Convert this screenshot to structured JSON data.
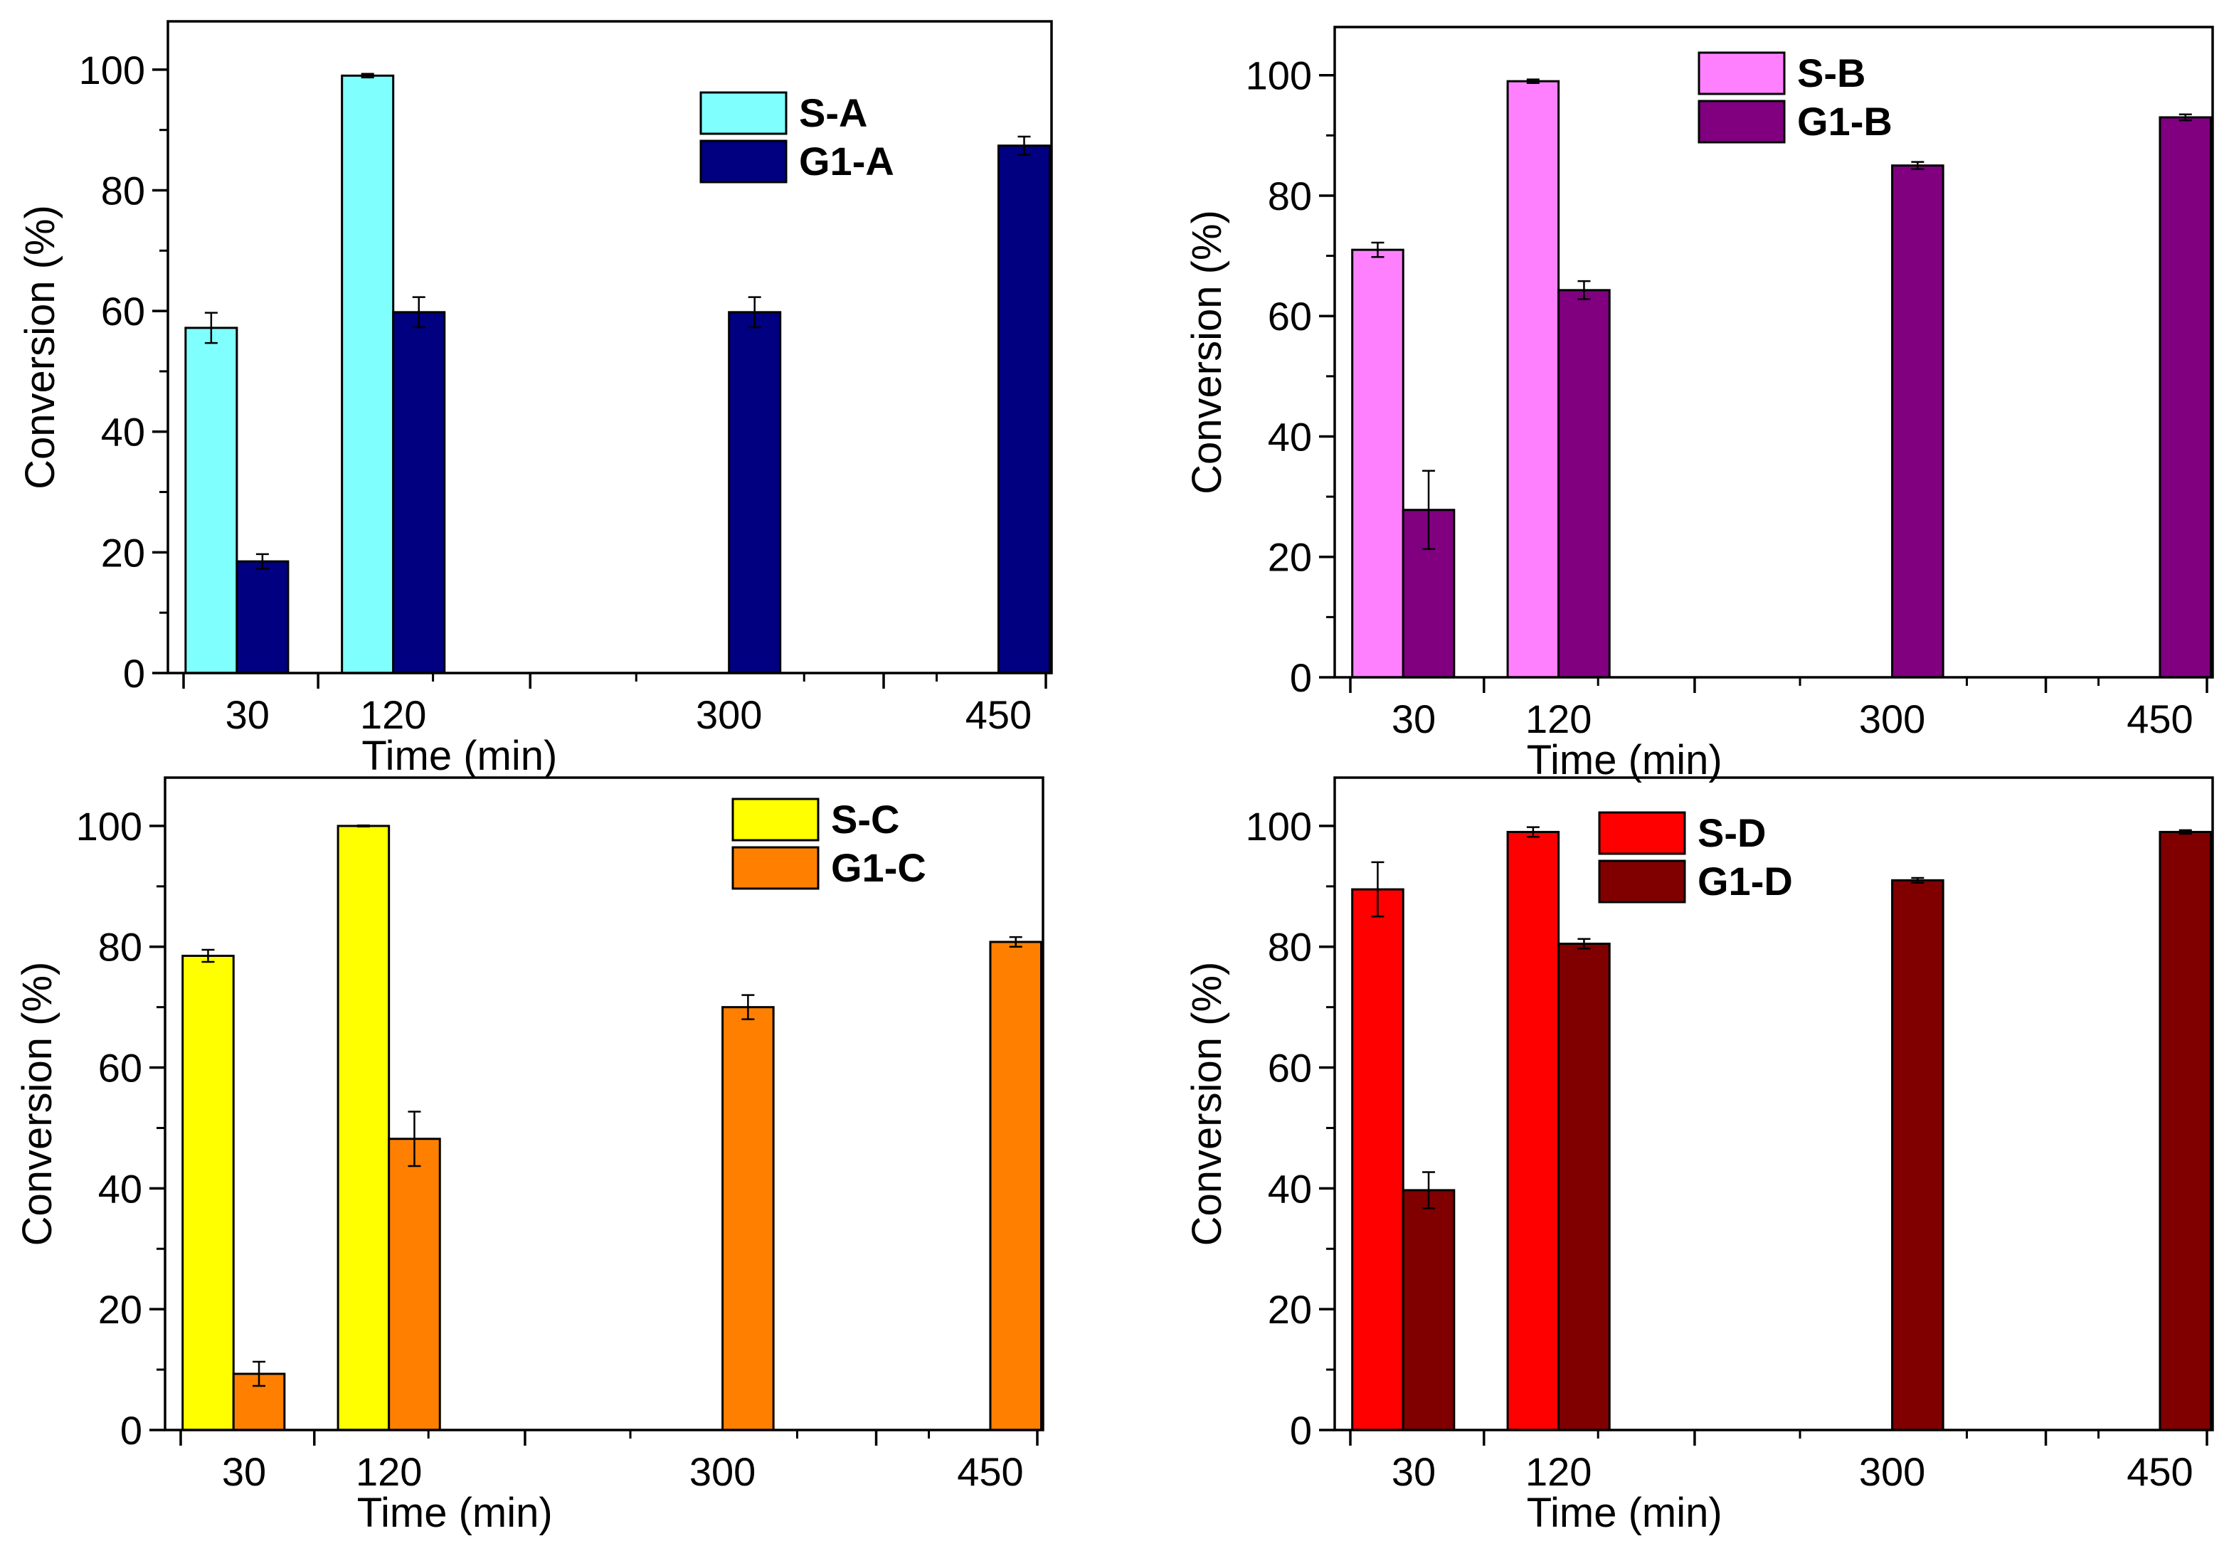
{
  "chart_data": [
    {
      "type": "bar",
      "panel": "top-left",
      "categories": [
        "30",
        "120",
        "300",
        "450"
      ],
      "xlabel": "Time (min)",
      "ylabel": "Conversion (%)",
      "ylim": [
        0,
        108
      ],
      "yticks": [
        0,
        20,
        40,
        60,
        80,
        100
      ],
      "legend_position": "top-right",
      "series": [
        {
          "name": "S-A",
          "color": "#80FFFF",
          "values": [
            57.2,
            99.0,
            null,
            null
          ],
          "errors": [
            2.5,
            0.3,
            null,
            null
          ]
        },
        {
          "name": "G1-A",
          "color": "#000080",
          "values": [
            18.5,
            59.8,
            59.8,
            87.4
          ],
          "errors": [
            1.2,
            2.5,
            2.5,
            1.5
          ]
        }
      ]
    },
    {
      "type": "bar",
      "panel": "top-right",
      "categories": [
        "30",
        "120",
        "300",
        "450"
      ],
      "xlabel": "Time (min)",
      "ylabel": "Conversion (%)",
      "ylim": [
        0,
        108
      ],
      "yticks": [
        0,
        20,
        40,
        60,
        80,
        100
      ],
      "legend_position": "top-center",
      "series": [
        {
          "name": "S-B",
          "color": "#FF80FF",
          "values": [
            71.0,
            99.0,
            null,
            null
          ],
          "errors": [
            1.2,
            0.3,
            null,
            null
          ]
        },
        {
          "name": "G1-B",
          "color": "#800080",
          "values": [
            27.8,
            64.3,
            85.0,
            93.0
          ],
          "errors": [
            6.5,
            1.5,
            0.6,
            0.5
          ]
        }
      ]
    },
    {
      "type": "bar",
      "panel": "bottom-left",
      "categories": [
        "30",
        "120",
        "300",
        "450"
      ],
      "xlabel": "Time (min)",
      "ylabel": "Conversion (%)",
      "ylim": [
        0,
        108
      ],
      "yticks": [
        0,
        20,
        40,
        60,
        80,
        100
      ],
      "legend_position": "top-right",
      "series": [
        {
          "name": "S-C",
          "color": "#FFFF00",
          "values": [
            78.5,
            100.0,
            null,
            null
          ],
          "errors": [
            1.0,
            0.1,
            null,
            null
          ]
        },
        {
          "name": "G1-C",
          "color": "#FF8000",
          "values": [
            9.3,
            48.2,
            70.0,
            80.8
          ],
          "errors": [
            2.0,
            4.5,
            2.0,
            0.8
          ]
        }
      ]
    },
    {
      "type": "bar",
      "panel": "bottom-right",
      "categories": [
        "30",
        "120",
        "300",
        "450"
      ],
      "xlabel": "Time (min)",
      "ylabel": "Conversion (%)",
      "ylim": [
        0,
        108
      ],
      "yticks": [
        0,
        20,
        40,
        60,
        80,
        100
      ],
      "legend_position": "top-center",
      "series": [
        {
          "name": "S-D",
          "color": "#FF0000",
          "values": [
            89.5,
            99.0,
            null,
            null
          ],
          "errors": [
            4.5,
            0.8,
            null,
            null
          ]
        },
        {
          "name": "G1-D",
          "color": "#800000",
          "values": [
            39.7,
            80.5,
            91.0,
            99.0
          ],
          "errors": [
            3.0,
            0.8,
            0.4,
            0.3
          ]
        }
      ]
    }
  ]
}
